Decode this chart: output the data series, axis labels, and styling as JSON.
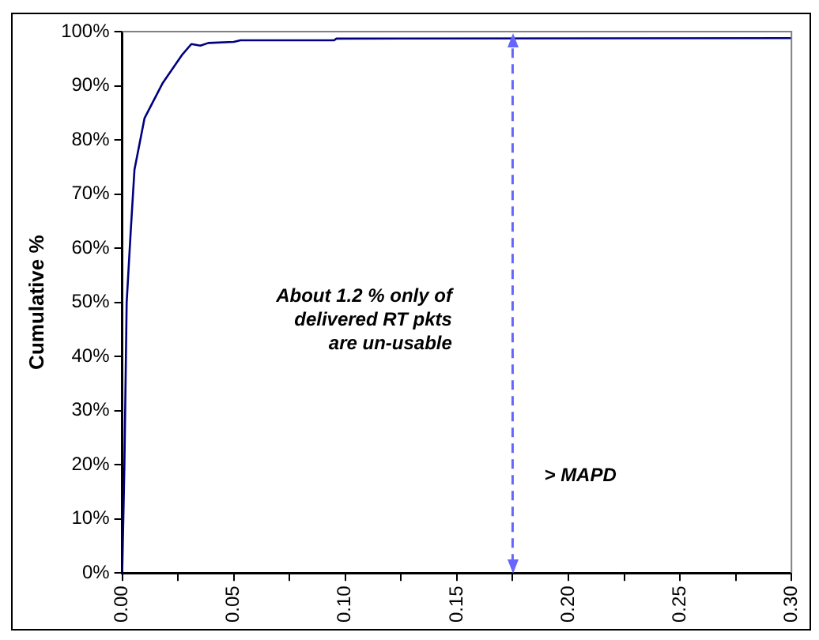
{
  "chart_data": {
    "type": "line",
    "ylabel": "Cumulative %",
    "x": [
      0,
      0.001,
      0.002,
      0.0038,
      0.0055,
      0.01,
      0.018,
      0.027,
      0.031,
      0.035,
      0.0386,
      0.05,
      0.053,
      0.095,
      0.096,
      0.3
    ],
    "series": [
      {
        "color": "#000080",
        "values": [
          0,
          20,
          50,
          63,
          74.5,
          84,
          90.4,
          95.8,
          97.7,
          97.4,
          97.9,
          98.1,
          98.4,
          98.4,
          98.7,
          98.8
        ]
      }
    ],
    "xlim": [
      0,
      0.3
    ],
    "xticks": [
      {
        "value": 0,
        "label": "0.00"
      },
      {
        "value": 0.025,
        "label": null
      },
      {
        "value": 0.05,
        "label": "0.05"
      },
      {
        "value": 0.075,
        "label": null
      },
      {
        "value": 0.1,
        "label": "0.10"
      },
      {
        "value": 0.125,
        "label": null
      },
      {
        "value": 0.15,
        "label": "0.15"
      },
      {
        "value": 0.175,
        "label": null
      },
      {
        "value": 0.2,
        "label": "0.20"
      },
      {
        "value": 0.225,
        "label": null
      },
      {
        "value": 0.25,
        "label": "0.25"
      },
      {
        "value": 0.275,
        "label": null
      },
      {
        "value": 0.3,
        "label": "0.30"
      }
    ],
    "ylim": [
      0,
      100
    ],
    "yticks": [
      {
        "value": 0,
        "label": "0%"
      },
      {
        "value": 10,
        "label": "10%"
      },
      {
        "value": 20,
        "label": "20%"
      },
      {
        "value": 30,
        "label": "30%"
      },
      {
        "value": 40,
        "label": "40%"
      },
      {
        "value": 50,
        "label": "50%"
      },
      {
        "value": 60,
        "label": "60%"
      },
      {
        "value": 70,
        "label": "70%"
      },
      {
        "value": 80,
        "label": "80%"
      },
      {
        "value": 90,
        "label": "90%"
      },
      {
        "value": 100,
        "label": "100%"
      }
    ],
    "ref_lines": [
      {
        "axis": "x",
        "value": 0.175,
        "label": "> MAPD",
        "color": "#6666ff",
        "line_style": "dashed"
      }
    ],
    "annotations": [
      "About 1.2 % only of\ndelivered RT pkts\nare un-usable"
    ],
    "grid": false,
    "legend": false,
    "marker": "none",
    "line_style": "solid"
  }
}
